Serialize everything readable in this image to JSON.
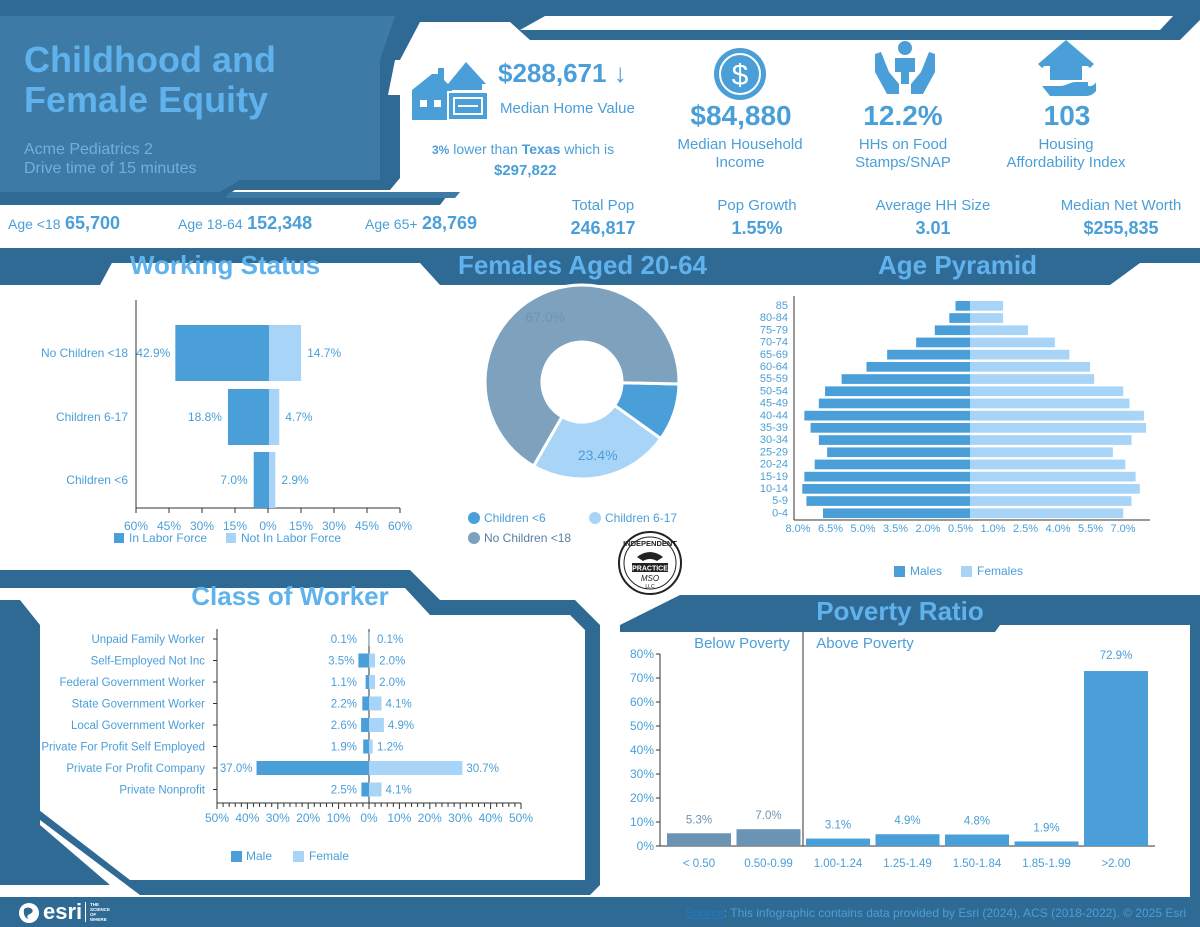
{
  "header": {
    "title_line1": "Childhood and",
    "title_line2": "Female Equity",
    "subtitle_line1": "Acme Pediatrics 2",
    "subtitle_line2": "Drive time of 15 minutes"
  },
  "home_value": {
    "value": "$288,671",
    "arrow": "↓",
    "label": "Median Home Value",
    "cmp_pct": "3%",
    "cmp_text1": " lower than ",
    "cmp_state": "Texas",
    "cmp_text2": " which is",
    "cmp_value": "$297,822"
  },
  "kpis": [
    {
      "value": "$84,880",
      "label1": "Median Household",
      "label2": "Income",
      "icon": "dollar-icon"
    },
    {
      "value": "12.2%",
      "label1": "HHs on Food",
      "label2": "Stamps/SNAP",
      "icon": "hands-family-icon"
    },
    {
      "value": "103",
      "label1": "Housing",
      "label2": "Affordability Index",
      "icon": "house-hand-icon"
    }
  ],
  "age_groups": [
    {
      "label": "Age <18",
      "value": "65,700"
    },
    {
      "label": "Age 18-64",
      "value": "152,348"
    },
    {
      "label": "Age 65+",
      "value": "28,769"
    }
  ],
  "stats": [
    {
      "label": "Total Pop",
      "value": "246,817"
    },
    {
      "label": "Pop Growth",
      "value": "1.55%"
    },
    {
      "label": "Average HH Size",
      "value": "3.01"
    },
    {
      "label": "Median Net Worth",
      "value": "$255,835"
    }
  ],
  "sections": {
    "working_status": "Working Status",
    "females": "Females Aged 20-64",
    "age_pyramid": "Age Pyramid",
    "class_of_worker": "Class of Worker",
    "poverty_ratio": "Poverty Ratio"
  },
  "logo": {
    "top": "INDEPENDENT",
    "middle": "PRACTICE",
    "script": "MSO",
    "bottom": "LLC"
  },
  "footer": {
    "brand": "esri",
    "tagline": [
      "THE",
      "SCIENCE",
      "OF",
      "WHERE"
    ],
    "source_link": "Source",
    "source_text": ": This infographic contains data provided by Esri (2024), ACS (2018-2022). © 2025 Esri"
  },
  "colors": {
    "navy": "#2f6a95",
    "primary": "#4a9fd8",
    "light": "#a8d5f7",
    "slate": "#6b93b4",
    "slate_light": "#7ea2be"
  },
  "chart_data": [
    {
      "id": "working_status",
      "type": "bar",
      "orientation": "horizontal-diverging",
      "categories": [
        "No Children <18",
        "Children 6-17",
        "Children <6"
      ],
      "series": [
        {
          "name": "In Labor Force",
          "values": [
            42.9,
            18.8,
            7.0
          ],
          "labels": [
            "42.9%",
            "18.8%",
            "7.0%"
          ]
        },
        {
          "name": "Not In Labor Force",
          "values": [
            14.7,
            4.7,
            2.9
          ],
          "labels": [
            "14.7%",
            "4.7%",
            "2.9%"
          ]
        }
      ],
      "xticks": [
        "60%",
        "45%",
        "30%",
        "15%",
        "0%",
        "15%",
        "30%",
        "45%",
        "60%"
      ],
      "xlim": [
        -60,
        60
      ]
    },
    {
      "id": "females_aged_20_64",
      "type": "pie",
      "donut": true,
      "categories": [
        "Children <6",
        "Children 6-17",
        "No Children <18"
      ],
      "values": [
        9.6,
        23.4,
        67.0
      ],
      "labels": [
        "",
        "23.4%",
        "67.0%"
      ]
    },
    {
      "id": "age_pyramid",
      "type": "bar",
      "orientation": "horizontal-diverging",
      "categories": [
        "85",
        "80-84",
        "75-79",
        "70-74",
        "65-69",
        "60-64",
        "55-59",
        "50-54",
        "45-49",
        "40-44",
        "35-39",
        "30-34",
        "25-29",
        "20-24",
        "15-19",
        "10-14",
        "5-9",
        "0-4"
      ],
      "series": [
        {
          "name": "Males",
          "values": [
            0.7,
            1.0,
            1.7,
            2.6,
            4.0,
            5.0,
            6.2,
            7.0,
            7.3,
            8.0,
            7.7,
            7.3,
            6.9,
            7.5,
            8.0,
            8.1,
            7.9,
            7.1
          ]
        },
        {
          "name": "Females",
          "values": [
            1.6,
            1.6,
            2.8,
            4.1,
            4.8,
            5.8,
            6.0,
            7.4,
            7.7,
            8.4,
            8.5,
            7.8,
            6.9,
            7.5,
            8.0,
            8.2,
            7.8,
            7.4
          ]
        }
      ],
      "xticks": [
        "8.0%",
        "6.5%",
        "5.0%",
        "3.5%",
        "2.0%",
        "0.5%",
        "1.0%",
        "2.5%",
        "4.0%",
        "5.5%",
        "7.0%"
      ],
      "xlim": [
        -8.5,
        8.5
      ]
    },
    {
      "id": "class_of_worker",
      "type": "bar",
      "orientation": "horizontal-diverging",
      "categories": [
        "Unpaid Family Worker",
        "Self-Employed Not Inc",
        "Federal Government Worker",
        "State Government Worker",
        "Local Government Worker",
        "Private For Profit Self Employed",
        "Private For Profit Company",
        "Private Nonprofit"
      ],
      "series": [
        {
          "name": "Male",
          "values": [
            0.1,
            3.5,
            1.1,
            2.2,
            2.6,
            1.9,
            37.0,
            2.5
          ],
          "labels": [
            "0.1%",
            "3.5%",
            "1.1%",
            "2.2%",
            "2.6%",
            "1.9%",
            "37.0%",
            "2.5%"
          ]
        },
        {
          "name": "Female",
          "values": [
            0.1,
            2.0,
            2.0,
            4.1,
            4.9,
            1.2,
            30.7,
            4.1
          ],
          "labels": [
            "0.1%",
            "2.0%",
            "2.0%",
            "4.1%",
            "4.9%",
            "1.2%",
            "30.7%",
            "4.1%"
          ]
        }
      ],
      "xticks": [
        "50%",
        "40%",
        "30%",
        "20%",
        "10%",
        "0%",
        "10%",
        "20%",
        "30%",
        "40%",
        "50%"
      ],
      "xlim": [
        -50,
        50
      ]
    },
    {
      "id": "poverty_ratio",
      "type": "bar",
      "categories": [
        "< 0.50",
        "0.50-0.99",
        "1.00-1.24",
        "1.25-1.49",
        "1.50-1.84",
        "1.85-1.99",
        ">2.00"
      ],
      "values": [
        5.3,
        7.0,
        3.1,
        4.9,
        4.8,
        1.9,
        72.9
      ],
      "labels": [
        "5.3%",
        "7.0%",
        "3.1%",
        "4.9%",
        "4.8%",
        "1.9%",
        "72.9%"
      ],
      "groups": [
        "Below Poverty",
        "Above Poverty"
      ],
      "yticks": [
        "0%",
        "10%",
        "20%",
        "30%",
        "40%",
        "50%",
        "60%",
        "70%",
        "80%"
      ],
      "ylim": [
        0,
        80
      ]
    }
  ]
}
